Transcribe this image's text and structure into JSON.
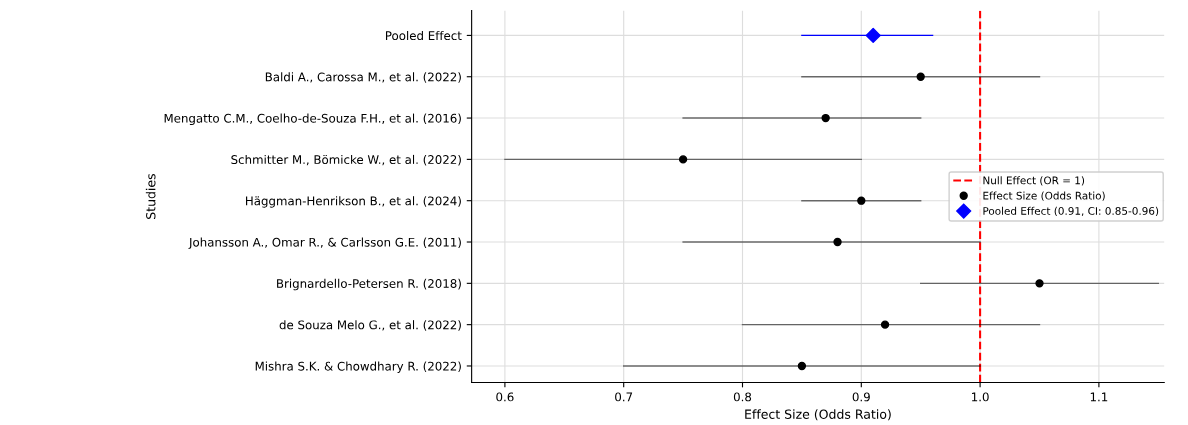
{
  "chart_data": {
    "type": "scatter",
    "orientation": "horizontal",
    "xlabel": "Effect Size (Odds Ratio)",
    "ylabel": "Studies",
    "categories": [
      "Pooled Effect",
      "Baldi A., Carossa M., et al. (2022)",
      "Mengatto C.M., Coelho-de-Souza F.H., et al. (2016)",
      "Schmitter M., Bömicke W., et al. (2022)",
      "Häggman-Henrikson B., et al. (2024)",
      "Johansson A., Omar R., & Carlsson G.E. (2011)",
      "Brignardello-Petersen R. (2018)",
      "de Souza Melo G., et al. (2022)",
      "Mishra S.K. & Chowdhary R. (2022)"
    ],
    "series": [
      {
        "name": "Effect Size (Odds Ratio)",
        "color": "#000000",
        "marker": "circle",
        "values": [
          null,
          0.95,
          0.87,
          0.75,
          0.9,
          0.88,
          1.05,
          0.92,
          0.85
        ],
        "errors": [
          null,
          [
            0.85,
            1.05
          ],
          [
            0.75,
            0.95
          ],
          [
            0.6,
            0.9
          ],
          [
            0.85,
            0.95
          ],
          [
            0.75,
            1.0
          ],
          [
            0.95,
            1.15
          ],
          [
            0.8,
            1.05
          ],
          [
            0.7,
            1.0
          ]
        ]
      },
      {
        "name": "Pooled Effect (0.91, CI: 0.85-0.96)",
        "color": "#0000ff",
        "marker": "diamond",
        "values": [
          0.91,
          null,
          null,
          null,
          null,
          null,
          null,
          null,
          null
        ],
        "errors": [
          [
            0.85,
            0.96
          ],
          null,
          null,
          null,
          null,
          null,
          null,
          null,
          null
        ]
      }
    ],
    "ref_lines": [
      {
        "axis": "x",
        "value": 1.0,
        "label": "Null Effect (OR = 1)",
        "color": "#ff0000",
        "line_style": "dashed"
      }
    ],
    "xlim": [
      0.572,
      1.155
    ],
    "xticks": [
      0.6,
      0.7,
      0.8,
      0.9,
      {
        "value": 1.0,
        "label": "1.0"
      },
      1.1
    ],
    "grid": true,
    "legend": "right"
  }
}
